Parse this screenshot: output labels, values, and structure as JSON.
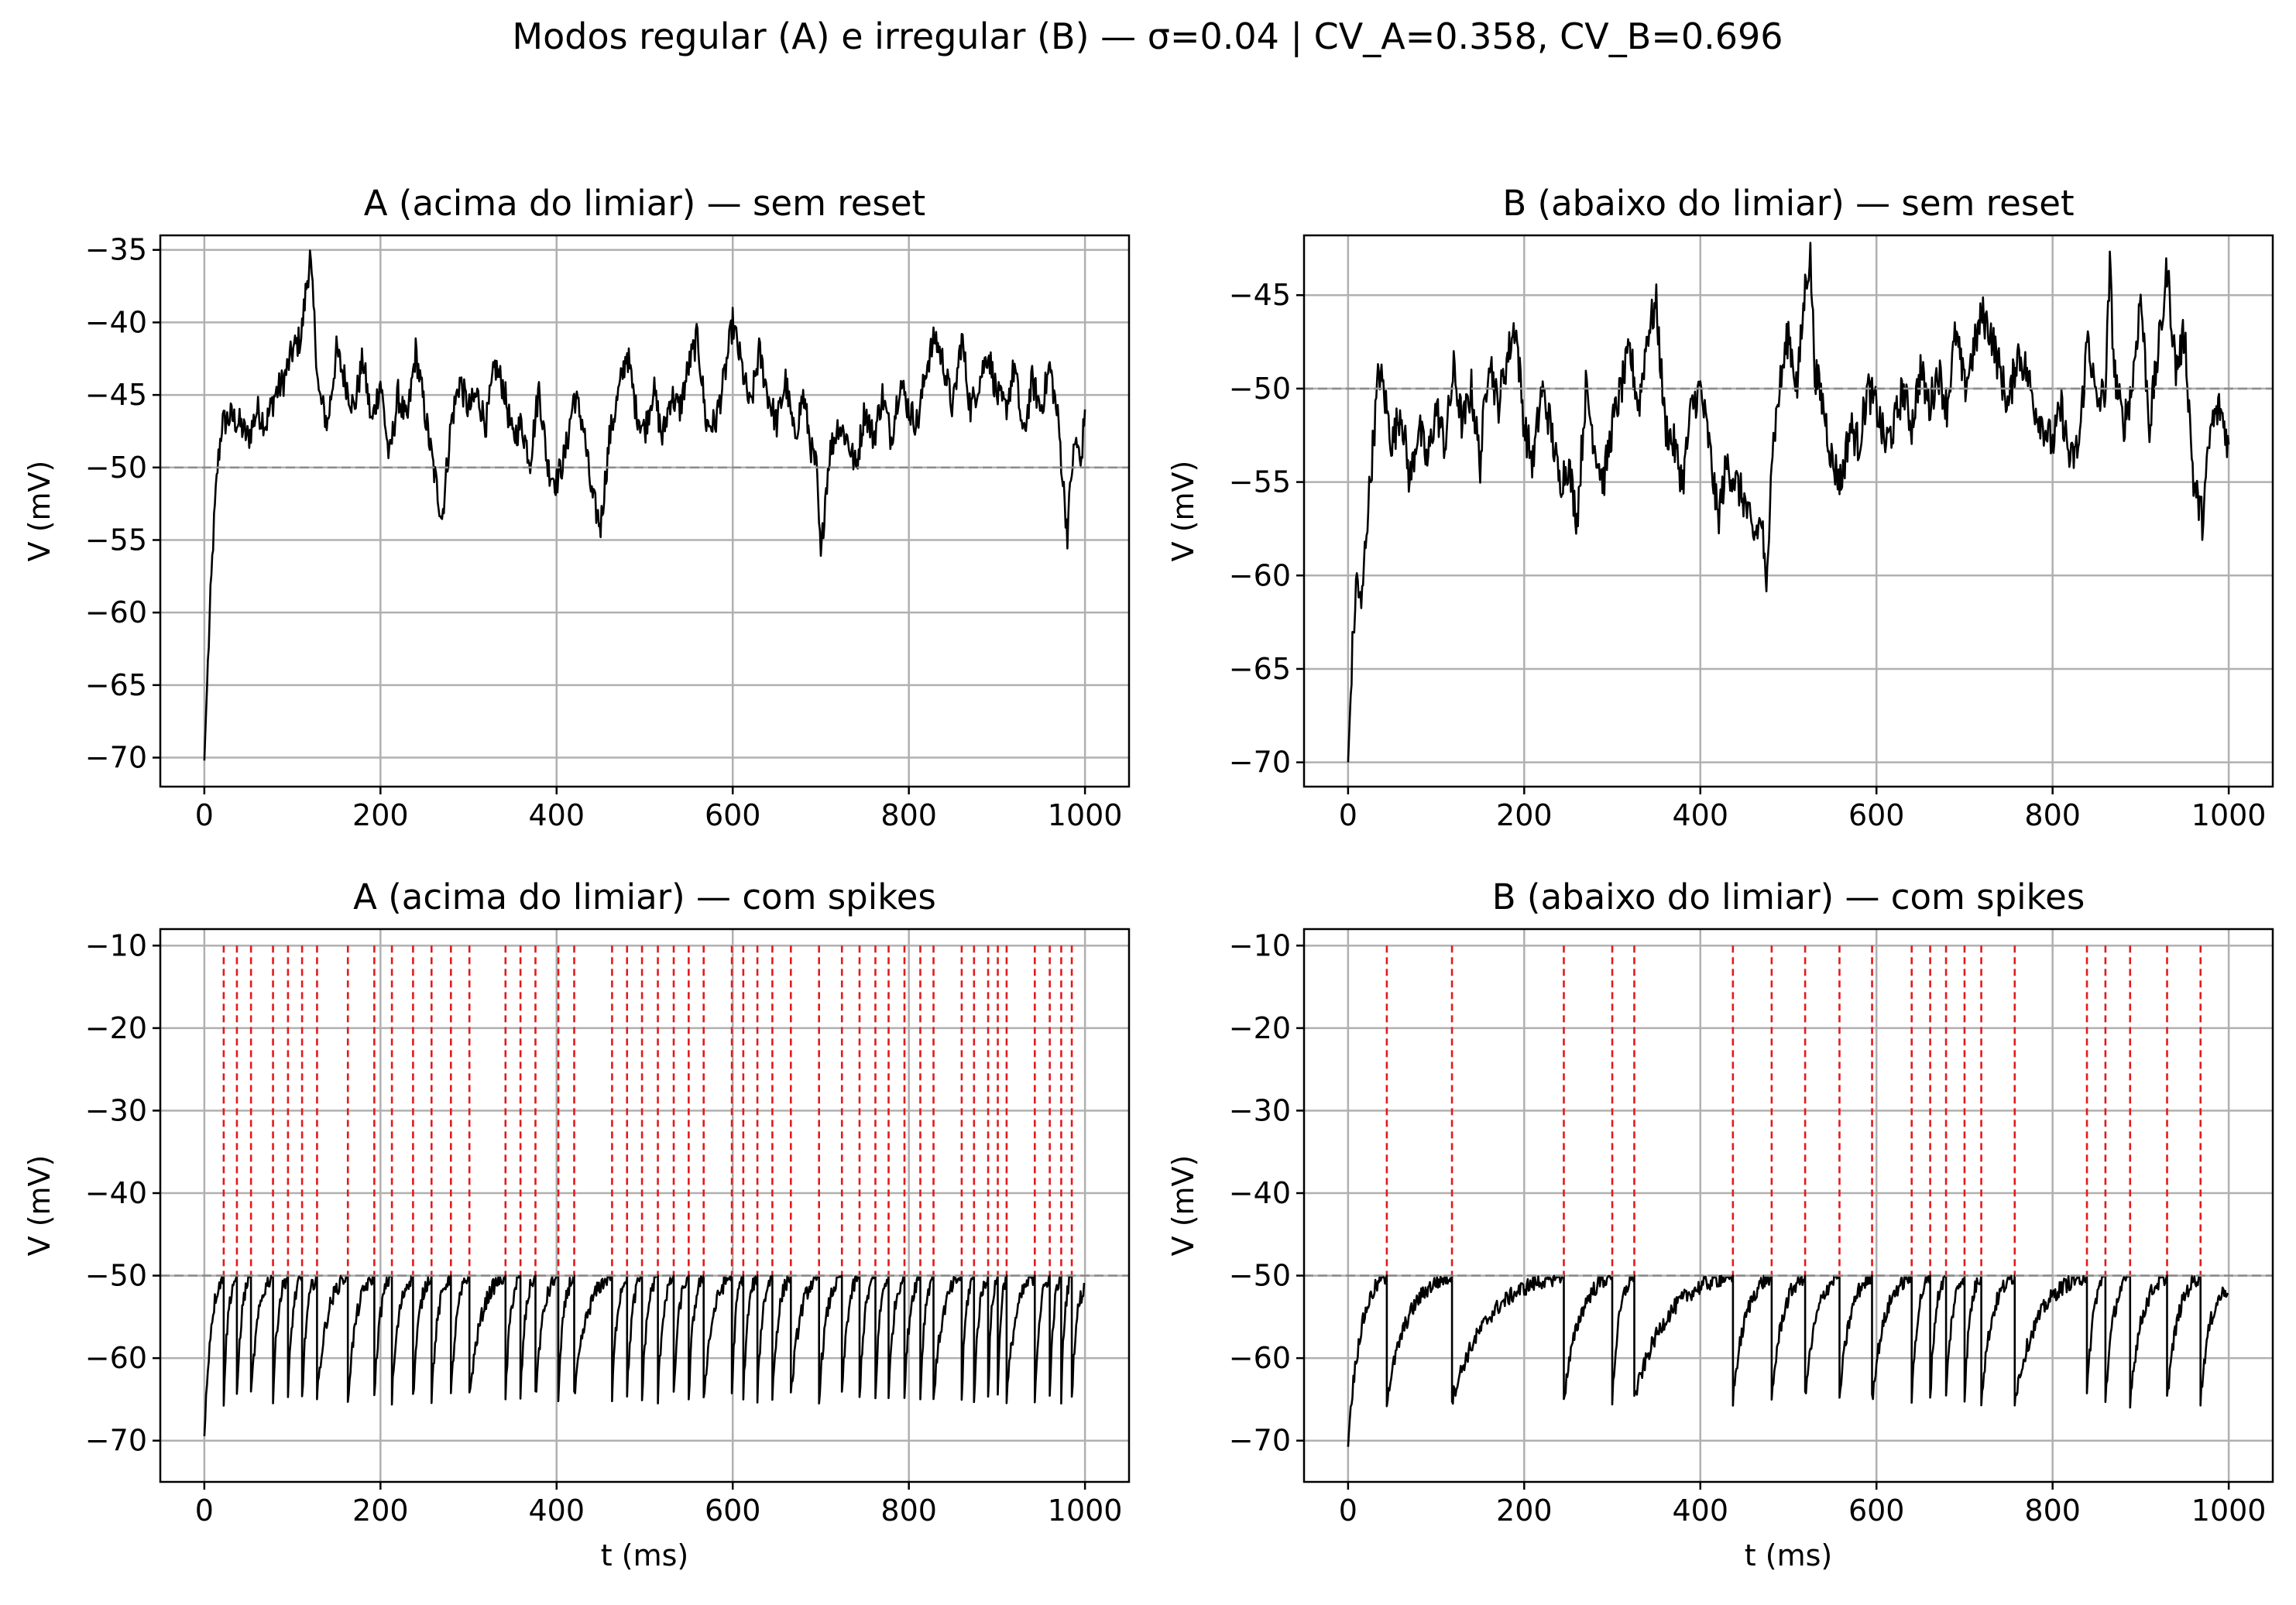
{
  "figure": {
    "title": "Modos regular (A) e irregular (B) — σ=0.04  |  CV_A=0.358, CV_B=0.696"
  },
  "colors": {
    "trace": "#000000",
    "spike": "#e31a1c",
    "threshold": "#8c8c8c",
    "grid": "#b0b0b0",
    "axes": "#000000"
  },
  "chart_data": [
    {
      "id": "A_reset",
      "type": "line",
      "title": "A (acima do limiar) — sem reset",
      "xlabel": "",
      "ylabel": "V (mV)",
      "xlim": [
        -50,
        1050
      ],
      "ylim": [
        -72,
        -34
      ],
      "xticks": [
        0,
        200,
        400,
        600,
        800,
        1000
      ],
      "yticks": [
        -35,
        -40,
        -45,
        -50,
        -55,
        -60,
        -65,
        -70
      ],
      "grid": true,
      "threshold": -50,
      "series": [
        {
          "x": [
            0,
            5,
            10,
            15,
            20,
            30,
            40,
            50,
            60,
            70,
            80,
            90,
            100,
            110,
            115,
            120,
            125,
            130,
            140,
            150,
            160,
            170,
            180,
            190,
            200,
            210,
            220,
            230,
            240,
            250,
            260,
            270,
            280,
            290,
            300,
            310,
            320,
            330,
            340,
            350,
            360,
            370,
            380,
            390,
            400,
            410,
            420,
            430,
            440,
            450,
            460,
            470,
            480,
            490,
            500,
            510,
            520,
            530,
            540,
            550,
            560,
            570,
            580,
            590,
            600,
            610,
            620,
            630,
            640,
            650,
            660,
            670,
            680,
            690,
            695,
            700,
            705,
            710,
            720,
            730,
            740,
            750,
            760,
            770,
            780,
            790,
            800,
            810,
            820,
            830,
            840,
            850,
            860,
            870,
            880,
            890,
            900,
            910,
            920,
            930,
            940,
            950,
            960,
            970,
            975,
            980,
            985,
            990,
            995,
            1000
          ],
          "y": [
            -70.2,
            -62,
            -55,
            -50,
            -47,
            -46.5,
            -47,
            -48,
            -46,
            -47,
            -45,
            -44,
            -42,
            -41,
            -38,
            -35.5,
            -40,
            -45,
            -47,
            -42,
            -44,
            -46,
            -42.5,
            -47,
            -44,
            -49.5,
            -45,
            -47,
            -42,
            -46,
            -50,
            -53.5,
            -47,
            -44,
            -46,
            -45,
            -47,
            -43,
            -44.5,
            -48,
            -47,
            -49.5,
            -44.5,
            -50,
            -51,
            -49,
            -45,
            -47,
            -52,
            -54,
            -48,
            -45,
            -42,
            -46,
            -47.5,
            -44.5,
            -48,
            -45,
            -46,
            -43,
            -41,
            -47,
            -47,
            -44,
            -40,
            -43,
            -46,
            -42,
            -45,
            -47,
            -44,
            -48,
            -45,
            -49,
            -50,
            -56.5,
            -52,
            -49,
            -47,
            -48,
            -50,
            -46,
            -48,
            -45,
            -48,
            -44,
            -46,
            -47,
            -43,
            -41,
            -43,
            -46,
            -41,
            -46,
            -44,
            -42,
            -45,
            -46,
            -43,
            -48,
            -44,
            -46,
            -43,
            -47,
            -51,
            -54.5,
            -50,
            -48,
            -50,
            -46
          ]
        }
      ]
    },
    {
      "id": "B_reset",
      "type": "line",
      "title": "B (abaixo do limiar) — sem reset",
      "xlabel": "",
      "ylabel": "V (mV)",
      "xlim": [
        -50,
        1050
      ],
      "ylim": [
        -71.3,
        -41.8
      ],
      "xticks": [
        0,
        200,
        400,
        600,
        800,
        1000
      ],
      "yticks": [
        -45,
        -50,
        -55,
        -60,
        -65,
        -70
      ],
      "grid": true,
      "threshold": -50,
      "series": [
        {
          "x": [
            0,
            5,
            10,
            15,
            20,
            25,
            30,
            35,
            40,
            50,
            60,
            70,
            80,
            90,
            100,
            110,
            120,
            130,
            140,
            150,
            160,
            170,
            180,
            190,
            200,
            210,
            220,
            230,
            240,
            250,
            260,
            270,
            280,
            290,
            300,
            310,
            320,
            330,
            340,
            350,
            360,
            370,
            380,
            390,
            400,
            410,
            420,
            430,
            440,
            450,
            460,
            470,
            475,
            480,
            485,
            490,
            500,
            510,
            520,
            525,
            530,
            540,
            550,
            560,
            570,
            580,
            590,
            600,
            610,
            620,
            630,
            640,
            650,
            660,
            670,
            680,
            690,
            700,
            710,
            720,
            730,
            740,
            750,
            760,
            770,
            780,
            790,
            800,
            810,
            820,
            830,
            840,
            850,
            860,
            865,
            870,
            880,
            890,
            900,
            910,
            920,
            925,
            930,
            940,
            950,
            960,
            970,
            980,
            990,
            1000
          ],
          "y": [
            -70,
            -64,
            -60,
            -62,
            -58,
            -55,
            -52,
            -49,
            -50,
            -53,
            -51,
            -55,
            -52,
            -54,
            -51,
            -53,
            -49,
            -52,
            -50,
            -54,
            -48,
            -51,
            -48.5,
            -46.5,
            -52,
            -54,
            -50,
            -52,
            -55,
            -54,
            -57,
            -50,
            -53,
            -55,
            -52,
            -50,
            -48,
            -51,
            -47,
            -45.5,
            -52,
            -53,
            -55,
            -51,
            -50,
            -53,
            -57,
            -54,
            -55,
            -56,
            -58,
            -57,
            -61.5,
            -54,
            -52,
            -50,
            -47,
            -50,
            -44,
            -43,
            -49,
            -51,
            -54,
            -55,
            -52,
            -53,
            -50,
            -51,
            -53,
            -52,
            -50,
            -52,
            -49,
            -51,
            -49,
            -51,
            -47,
            -50,
            -48,
            -46,
            -47,
            -49,
            -51,
            -48,
            -49,
            -51,
            -52,
            -53,
            -51,
            -54,
            -53,
            -47,
            -51,
            -50,
            -43.5,
            -49,
            -52,
            -50,
            -45,
            -52,
            -48,
            -46,
            -43.5,
            -49,
            -47,
            -55,
            -57,
            -52,
            -51,
            -53
          ]
        }
      ]
    },
    {
      "id": "A_spikes",
      "type": "line",
      "title": "A (acima do limiar) — com spikes",
      "xlabel": "t (ms)",
      "ylabel": "V (mV)",
      "xlim": [
        -50,
        1050
      ],
      "ylim": [
        -75,
        -8
      ],
      "xticks": [
        0,
        200,
        400,
        600,
        800,
        1000
      ],
      "yticks": [
        -10,
        -20,
        -30,
        -40,
        -50,
        -60,
        -70
      ],
      "grid": true,
      "threshold": -50,
      "spike_top": -10,
      "spikes": [
        22,
        37,
        53,
        78,
        95,
        111,
        128,
        163,
        193,
        213,
        237,
        258,
        280,
        301,
        342,
        359,
        376,
        402,
        420,
        463,
        480,
        497,
        515,
        533,
        550,
        567,
        599,
        612,
        628,
        645,
        666,
        698,
        724,
        744,
        762,
        777,
        795,
        813,
        828,
        860,
        874,
        890,
        901,
        911,
        943,
        960,
        973,
        985
      ],
      "reset": -65,
      "start": -70
    },
    {
      "id": "B_spikes",
      "type": "line",
      "title": "B (abaixo do limiar) — com spikes",
      "xlabel": "t (ms)",
      "ylabel": "V (mV)",
      "xlim": [
        -50,
        1050
      ],
      "ylim": [
        -75,
        -8
      ],
      "xticks": [
        0,
        200,
        400,
        600,
        800,
        1000
      ],
      "yticks": [
        -10,
        -20,
        -30,
        -40,
        -50,
        -60,
        -70
      ],
      "grid": true,
      "threshold": -50,
      "spike_top": -10,
      "spikes": [
        44,
        118,
        245,
        300,
        325,
        437,
        481,
        519,
        558,
        595,
        640,
        661,
        679,
        700,
        719,
        757,
        839,
        860,
        888,
        930,
        968
      ],
      "reset": -65,
      "start": -70
    }
  ]
}
